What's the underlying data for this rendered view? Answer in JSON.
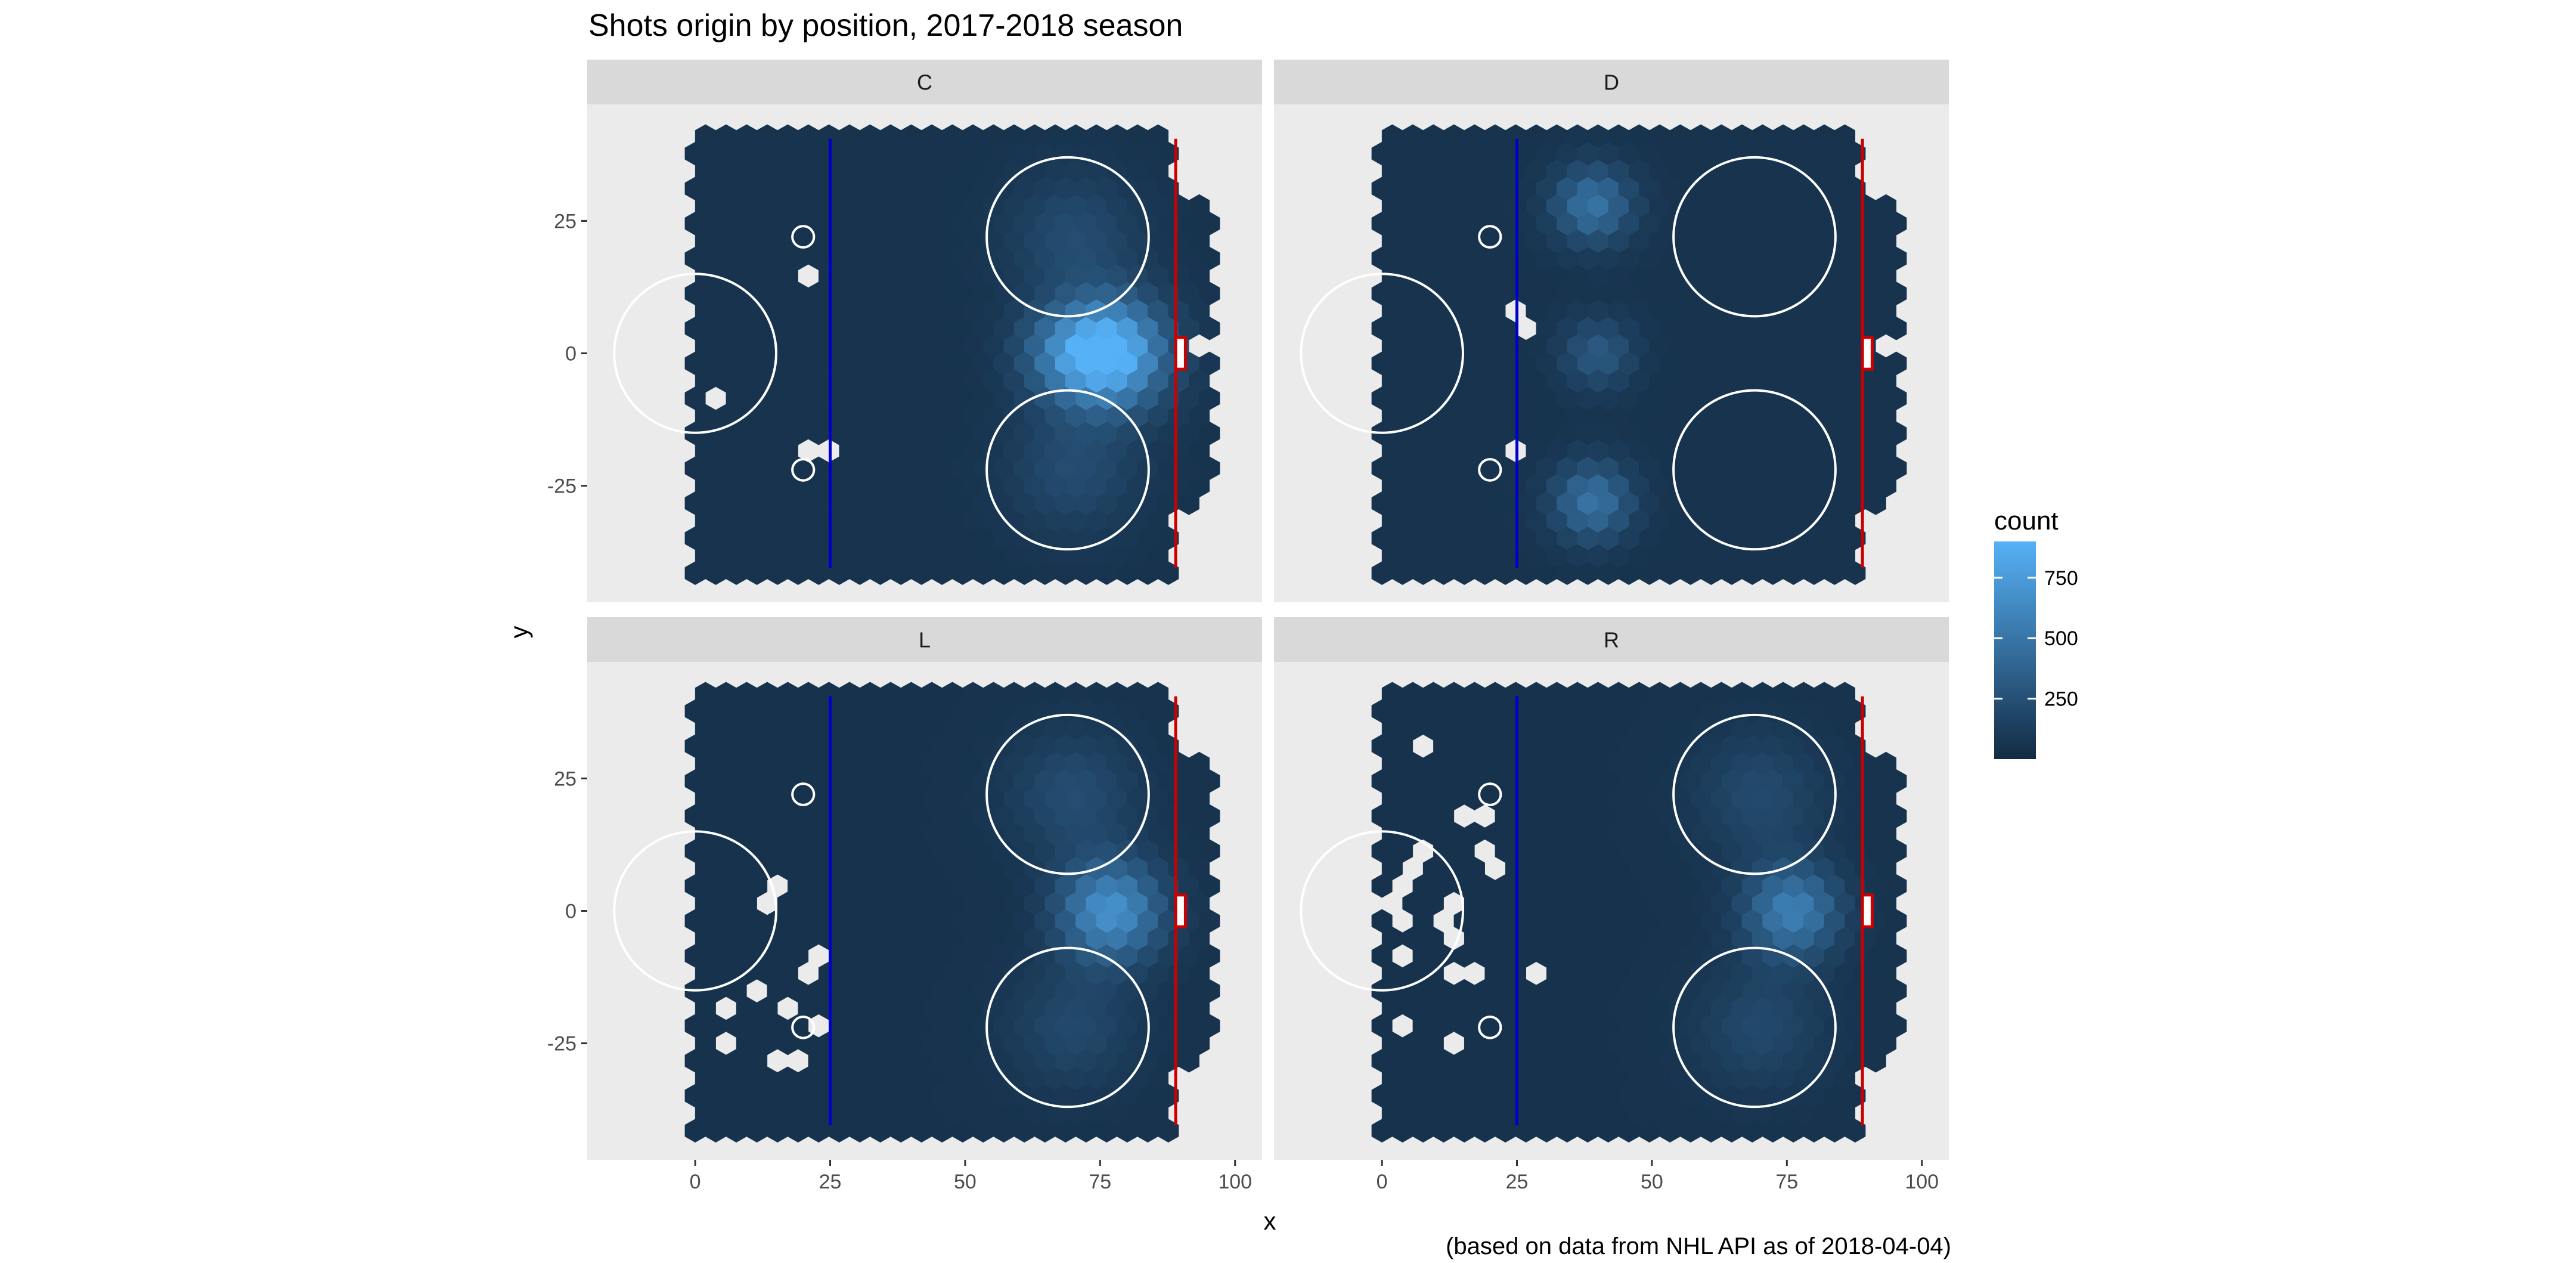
{
  "chart_data": {
    "type": "heatmap",
    "subtype": "hexbin",
    "title": "Shots origin by position, 2017-2018 season",
    "xlabel": "x",
    "ylabel": "y",
    "caption": "(based on data from NHL API as of 2018-04-04)",
    "xlim": [
      -20,
      105
    ],
    "ylim": [
      -47,
      47
    ],
    "x_ticks": [
      0,
      25,
      50,
      75,
      100
    ],
    "y_ticks": [
      -25,
      0,
      25
    ],
    "x_tick_labels": [
      "0",
      "25",
      "50",
      "75",
      "100"
    ],
    "y_tick_labels": [
      "-25",
      "0",
      "25"
    ],
    "legend": {
      "title": "count",
      "position": "right",
      "breaks": [
        250,
        500,
        750
      ],
      "labels": [
        "250",
        "500",
        "750"
      ],
      "range": [
        0,
        900
      ],
      "low_color": "#132B43",
      "high_color": "#56B1F7"
    },
    "facets": [
      {
        "label": "C",
        "hotspots": [
          {
            "x": 77,
            "y": 0,
            "r": 14,
            "peak": 900
          },
          {
            "x": 68,
            "y": 0,
            "r": 12,
            "peak": 300
          },
          {
            "x": 70,
            "y": 22,
            "r": 16,
            "peak": 170
          },
          {
            "x": 70,
            "y": -22,
            "r": 16,
            "peak": 170
          }
        ],
        "base": 55,
        "empty_cells": [
          [
            20,
            15
          ],
          [
            4,
            -9
          ],
          [
            23,
            -18
          ],
          [
            93,
            0
          ]
        ]
      },
      {
        "label": "D",
        "hotspots": [
          {
            "x": 40,
            "y": 0,
            "r": 9,
            "peak": 260
          },
          {
            "x": 39,
            "y": 28,
            "r": 10,
            "peak": 430
          },
          {
            "x": 39,
            "y": -28,
            "r": 10,
            "peak": 430
          }
        ],
        "base": 55,
        "empty_cells": [
          [
            25,
            6
          ],
          [
            25,
            -18
          ],
          [
            92,
            2
          ]
        ]
      },
      {
        "label": "L",
        "hotspots": [
          {
            "x": 77,
            "y": 0,
            "r": 13,
            "peak": 640
          },
          {
            "x": 70,
            "y": 22,
            "r": 16,
            "peak": 180
          },
          {
            "x": 70,
            "y": -22,
            "r": 16,
            "peak": 150
          }
        ],
        "base": 50,
        "empty_cells": [
          [
            15,
            3
          ],
          [
            22,
            -10
          ],
          [
            12,
            -15
          ],
          [
            17,
            -17
          ],
          [
            6,
            -20
          ],
          [
            23,
            -22
          ],
          [
            5,
            -25
          ],
          [
            14,
            -29
          ],
          [
            20,
            -28
          ]
        ]
      },
      {
        "label": "R",
        "hotspots": [
          {
            "x": 76,
            "y": 0,
            "r": 12,
            "peak": 520
          },
          {
            "x": 70,
            "y": 22,
            "r": 16,
            "peak": 160
          },
          {
            "x": 70,
            "y": -22,
            "r": 16,
            "peak": 150
          }
        ],
        "base": 50,
        "empty_cells": [
          [
            8,
            31
          ],
          [
            17,
            18
          ],
          [
            20,
            12
          ],
          [
            6,
            10
          ],
          [
            20,
            8
          ],
          [
            3,
            3
          ],
          [
            12,
            0
          ],
          [
            4,
            -3
          ],
          [
            14,
            -4
          ],
          [
            4,
            -9
          ],
          [
            15,
            -11
          ],
          [
            30,
            -11
          ],
          [
            4,
            -20
          ],
          [
            12,
            -26
          ]
        ]
      }
    ],
    "rink_markings": {
      "blue_line_x": 25,
      "goal_line_x": 89,
      "center_circle": {
        "x": 0,
        "y": 0,
        "r": 15
      },
      "faceoff_circles": [
        {
          "x": 69,
          "y": 22,
          "r": 15
        },
        {
          "x": 69,
          "y": -22,
          "r": 15
        }
      ],
      "faceoff_dots": [
        {
          "x": 20,
          "y": 22
        },
        {
          "x": 20,
          "y": -22
        }
      ],
      "crease": {
        "x": 89,
        "y": 0
      }
    }
  }
}
